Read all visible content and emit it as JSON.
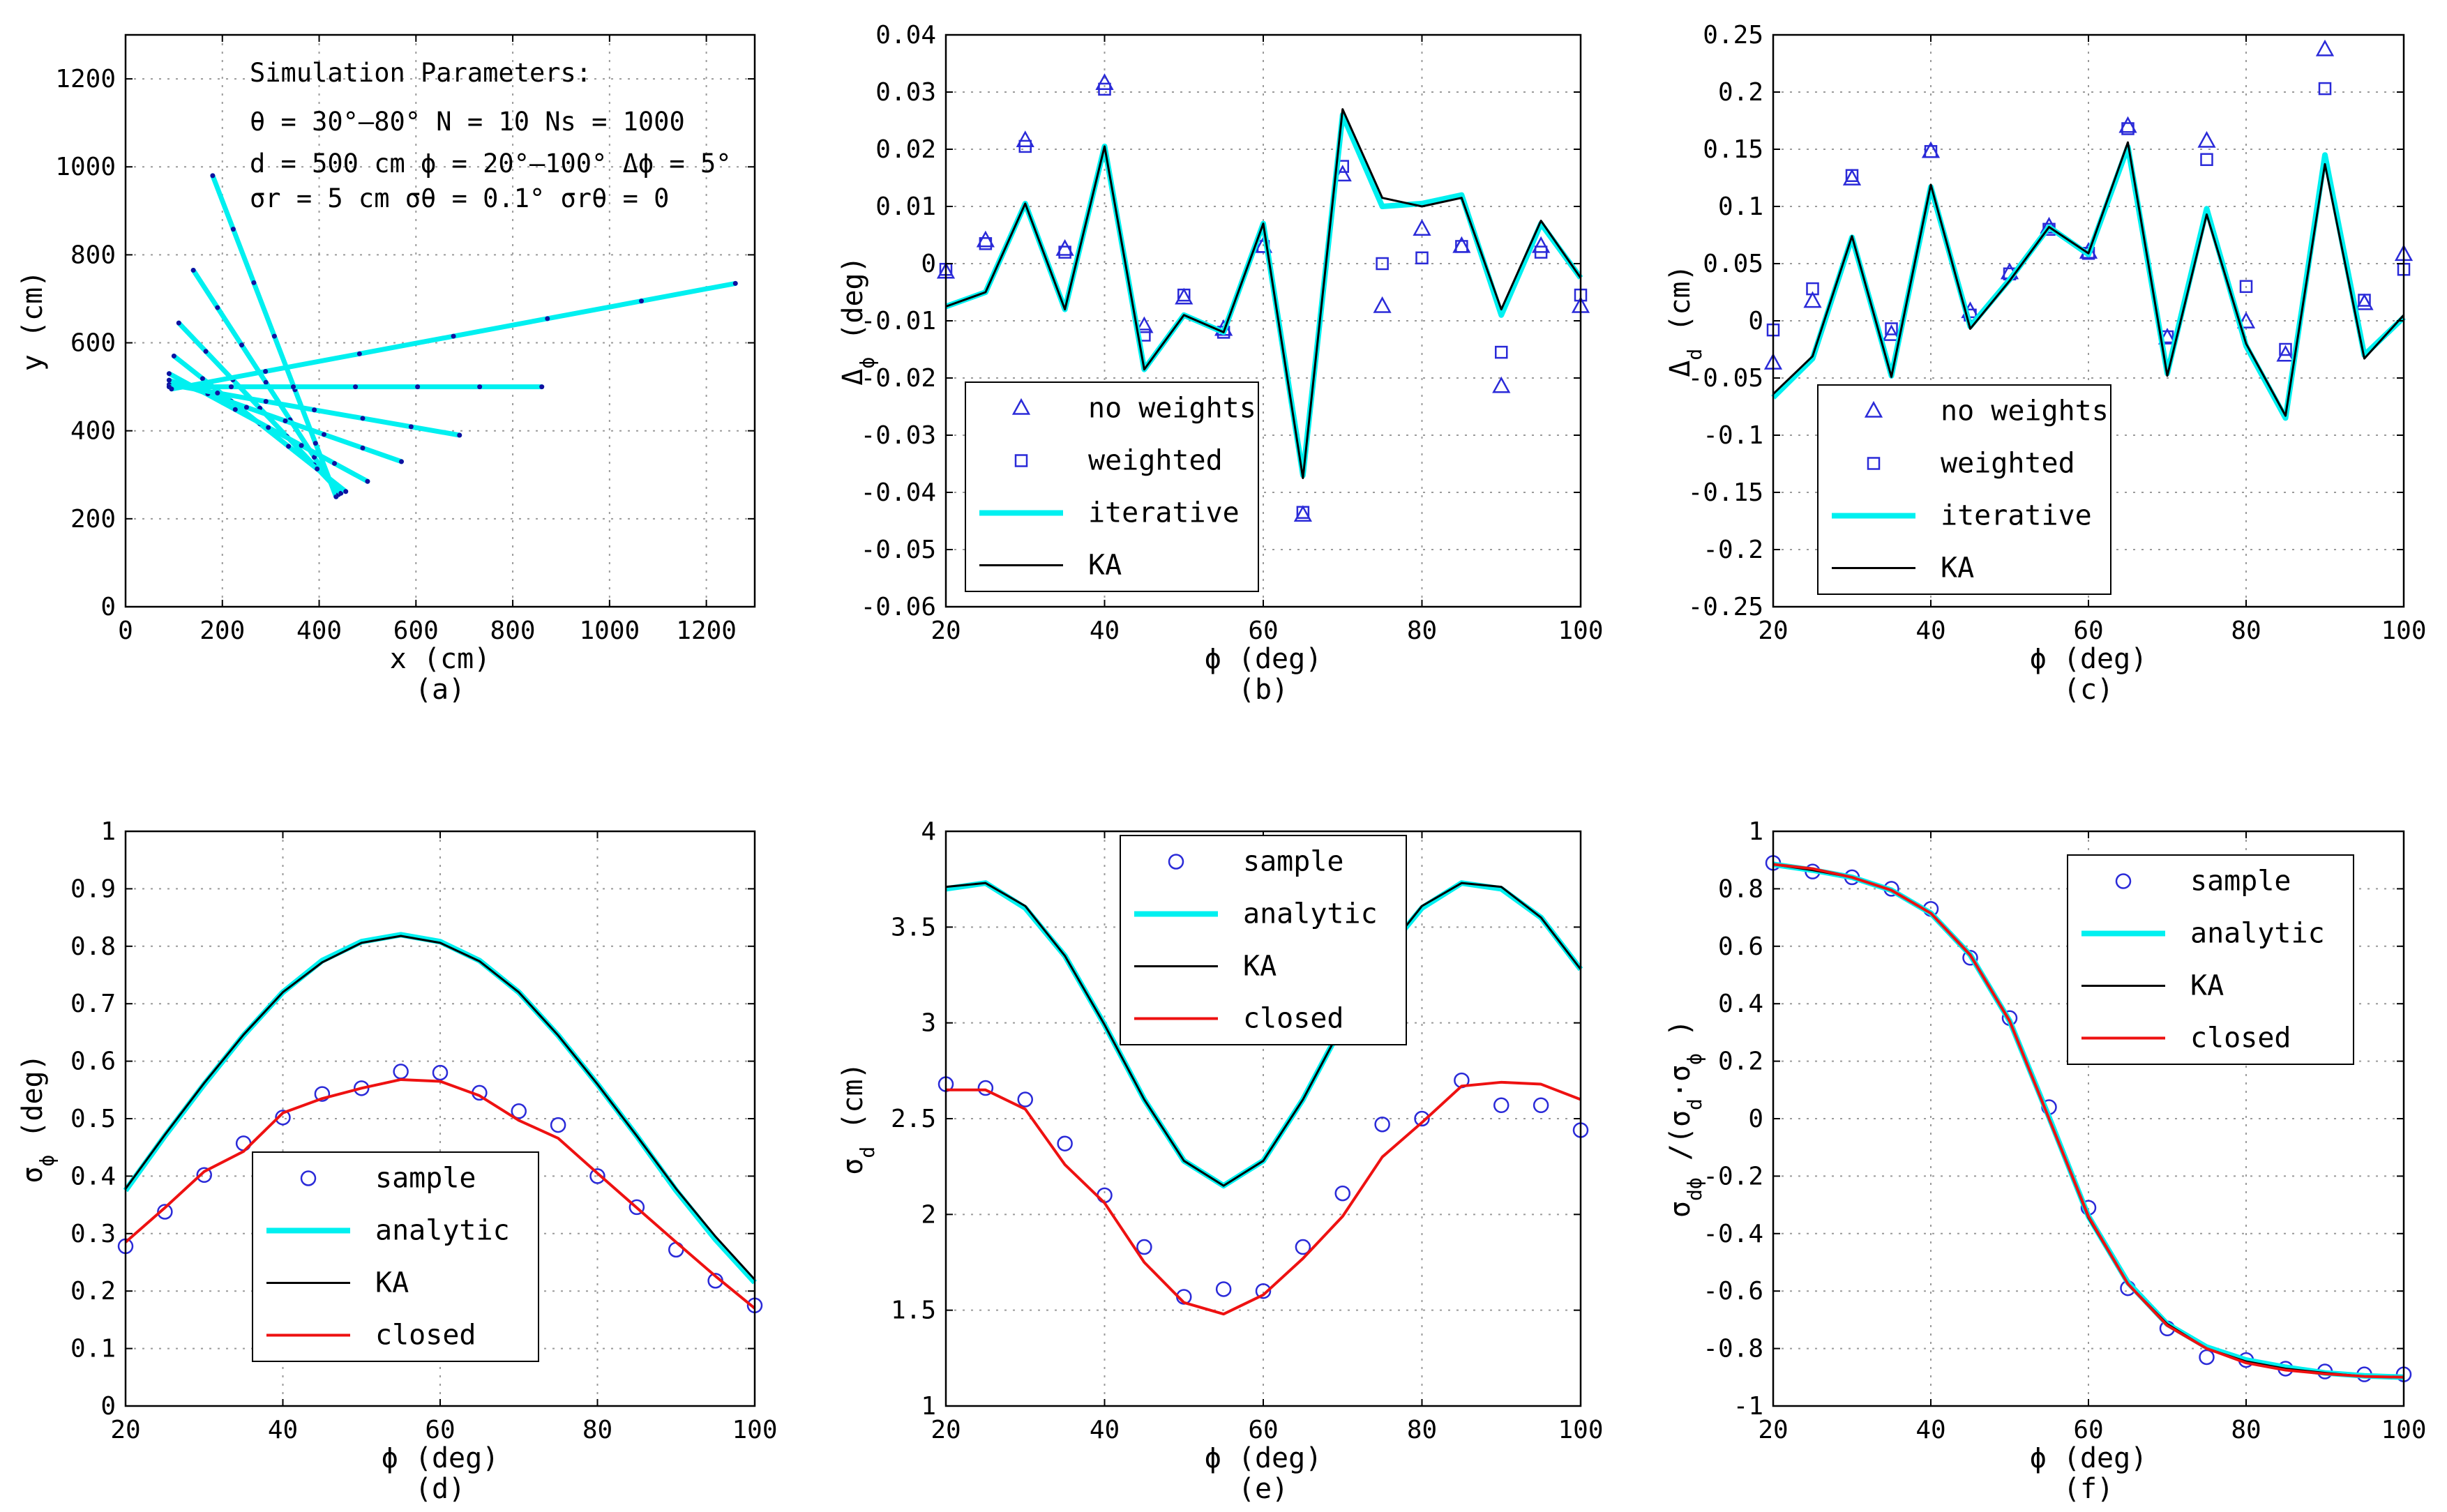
{
  "figure": {
    "params_title": "Simulation Parameters:",
    "params_lines": [
      "θ = 30°–80°   N = 10   Ns = 1000",
      "d = 500 cm  ϕ = 20°–100°  Δϕ = 5°",
      "σr = 5 cm   σθ = 0.1°   σrθ = 0"
    ]
  },
  "colors": {
    "cyan": "#00f0f0",
    "black": "#000000",
    "red": "#ee1111",
    "marker": "#2a2ad8",
    "dot": "#1010a0"
  },
  "chart_data": [
    {
      "id": "a",
      "type": "line",
      "caption": "(a)",
      "xlabel": "x (cm)",
      "ylabel": "y (cm)",
      "xlim": [
        0,
        1300
      ],
      "ylim": [
        0,
        1300
      ],
      "xticks": [
        0,
        200,
        400,
        600,
        800,
        1000,
        1200
      ],
      "yticks": [
        0,
        200,
        400,
        600,
        800,
        1000,
        1200
      ],
      "series": [
        {
          "name": "line-phi-100",
          "kind": "line",
          "color": "cyan",
          "points": [
            [
              180,
              980
            ],
            [
              435,
              250
            ]
          ]
        },
        {
          "name": "line-phi-80",
          "kind": "line",
          "color": "cyan",
          "points": [
            [
              140,
              765
            ],
            [
              440,
              255
            ]
          ]
        },
        {
          "name": "line-phi-70",
          "kind": "line",
          "color": "cyan",
          "points": [
            [
              110,
              645
            ],
            [
              445,
              258
            ]
          ]
        },
        {
          "name": "line-phi-60",
          "kind": "line",
          "color": "cyan",
          "points": [
            [
              100,
              570
            ],
            [
              455,
              262
            ]
          ]
        },
        {
          "name": "line-phi-40",
          "kind": "line",
          "color": "cyan",
          "points": [
            [
              90,
              530
            ],
            [
              500,
              285
            ]
          ]
        },
        {
          "name": "line-phi-30",
          "kind": "line",
          "color": "cyan",
          "points": [
            [
              90,
              515
            ],
            [
              570,
              330
            ]
          ]
        },
        {
          "name": "line-phi-20",
          "kind": "line",
          "color": "cyan",
          "points": [
            [
              90,
              505
            ],
            [
              690,
              390
            ]
          ]
        },
        {
          "name": "line-phi-0",
          "kind": "line",
          "color": "cyan",
          "points": [
            [
              90,
              500
            ],
            [
              860,
              500
            ]
          ]
        },
        {
          "name": "line-phi-neg10",
          "kind": "line",
          "color": "cyan",
          "points": [
            [
              95,
              495
            ],
            [
              1260,
              735
            ]
          ]
        }
      ],
      "param_box": true
    },
    {
      "id": "b",
      "type": "line",
      "caption": "(b)",
      "xlabel": "ϕ (deg)",
      "ylabel": "Δϕ (deg)",
      "ylabel_main": "Δ",
      "ylabel_sub": "ϕ",
      "ylabel_tail": "(deg)",
      "xlim": [
        20,
        100
      ],
      "ylim": [
        -0.06,
        0.04
      ],
      "xticks": [
        20,
        40,
        60,
        80,
        100
      ],
      "yticks": [
        -0.06,
        -0.05,
        -0.04,
        -0.03,
        -0.02,
        -0.01,
        0,
        0.01,
        0.02,
        0.03,
        0.04
      ],
      "x": [
        20,
        25,
        30,
        35,
        40,
        45,
        50,
        55,
        60,
        65,
        70,
        75,
        80,
        85,
        90,
        95,
        100
      ],
      "series": [
        {
          "name": "no weights",
          "kind": "triangle",
          "color": "marker",
          "values": [
            -0.0015,
            0.004,
            0.0215,
            0.0025,
            0.0315,
            -0.011,
            -0.006,
            -0.0115,
            0.003,
            -0.044,
            0.0155,
            -0.0075,
            0.006,
            0.003,
            -0.0215,
            0.003,
            -0.0075
          ]
        },
        {
          "name": "weighted",
          "kind": "square",
          "color": "marker",
          "values": [
            -0.001,
            0.0035,
            0.0205,
            0.002,
            0.0305,
            -0.0125,
            -0.0055,
            -0.012,
            0.003,
            -0.0435,
            0.017,
            0.0,
            0.001,
            0.003,
            -0.0155,
            0.002,
            -0.0055
          ]
        },
        {
          "name": "iterative",
          "kind": "line",
          "color": "cyan",
          "values": [
            -0.0075,
            -0.005,
            0.0105,
            -0.008,
            0.0205,
            -0.0185,
            -0.009,
            -0.012,
            0.007,
            -0.037,
            0.026,
            0.01,
            0.0105,
            0.012,
            -0.009,
            0.007,
            -0.0025
          ]
        },
        {
          "name": "KA",
          "kind": "line",
          "color": "black",
          "values": [
            -0.0075,
            -0.005,
            0.0105,
            -0.008,
            0.0205,
            -0.0185,
            -0.009,
            -0.012,
            0.007,
            -0.0375,
            0.027,
            0.0115,
            0.01,
            0.0115,
            -0.008,
            0.0075,
            -0.0025
          ]
        }
      ],
      "legend_pos": "lower-left"
    },
    {
      "id": "c",
      "type": "line",
      "caption": "(c)",
      "xlabel": "ϕ (deg)",
      "ylabel": "Δd (cm)",
      "ylabel_main": "Δ",
      "ylabel_sub": "d",
      "ylabel_tail": "(cm)",
      "xlim": [
        20,
        100
      ],
      "ylim": [
        -0.25,
        0.25
      ],
      "xticks": [
        20,
        40,
        60,
        80,
        100
      ],
      "yticks": [
        -0.25,
        -0.2,
        -0.15,
        -0.1,
        -0.05,
        0,
        0.05,
        0.1,
        0.15,
        0.2,
        0.25
      ],
      "x": [
        20,
        25,
        30,
        35,
        40,
        45,
        50,
        55,
        60,
        65,
        70,
        75,
        80,
        85,
        90,
        95,
        100
      ],
      "series": [
        {
          "name": "no weights",
          "kind": "triangle",
          "color": "marker",
          "values": [
            -0.037,
            0.017,
            0.124,
            -0.012,
            0.148,
            0.008,
            0.042,
            0.082,
            0.06,
            0.17,
            -0.015,
            0.157,
            -0.001,
            -0.03,
            0.237,
            0.015,
            0.058
          ]
        },
        {
          "name": "weighted",
          "kind": "square",
          "color": "marker",
          "values": [
            -0.008,
            0.028,
            0.127,
            -0.007,
            0.148,
            0.005,
            0.041,
            0.08,
            0.059,
            0.168,
            -0.014,
            0.141,
            0.03,
            -0.025,
            0.203,
            0.018,
            0.045
          ]
        },
        {
          "name": "iterative",
          "kind": "line",
          "color": "cyan",
          "values": [
            -0.067,
            -0.033,
            0.073,
            -0.048,
            0.117,
            -0.005,
            0.036,
            0.082,
            0.058,
            0.152,
            -0.046,
            0.098,
            -0.022,
            -0.085,
            0.145,
            -0.03,
            0.003
          ]
        },
        {
          "name": "KA",
          "kind": "line",
          "color": "black",
          "values": [
            -0.064,
            -0.031,
            0.074,
            -0.049,
            0.119,
            -0.007,
            0.035,
            0.082,
            0.059,
            0.156,
            -0.048,
            0.093,
            -0.02,
            -0.083,
            0.137,
            -0.033,
            0.005
          ]
        }
      ],
      "legend_pos": "lower-left"
    },
    {
      "id": "d",
      "type": "line",
      "caption": "(d)",
      "xlabel": "ϕ (deg)",
      "ylabel": "σϕ (deg)",
      "ylabel_main": "σ",
      "ylabel_sub": "ϕ",
      "ylabel_tail": "(deg)",
      "xlim": [
        20,
        100
      ],
      "ylim": [
        0,
        1
      ],
      "xticks": [
        20,
        40,
        60,
        80,
        100
      ],
      "yticks": [
        0,
        0.1,
        0.2,
        0.3,
        0.4,
        0.5,
        0.6,
        0.7,
        0.8,
        0.9,
        1
      ],
      "x": [
        20,
        25,
        30,
        35,
        40,
        45,
        50,
        55,
        60,
        65,
        70,
        75,
        80,
        85,
        90,
        95,
        100
      ],
      "series": [
        {
          "name": "sample",
          "kind": "circle",
          "color": "marker",
          "values": [
            0.278,
            0.338,
            0.402,
            0.457,
            0.502,
            0.543,
            0.553,
            0.582,
            0.58,
            0.545,
            0.513,
            0.489,
            0.4,
            0.346,
            0.272,
            0.218,
            0.175
          ]
        },
        {
          "name": "analytic",
          "kind": "line",
          "color": "cyan",
          "values": [
            0.375,
            0.47,
            0.56,
            0.645,
            0.72,
            0.775,
            0.808,
            0.82,
            0.808,
            0.775,
            0.72,
            0.645,
            0.56,
            0.47,
            0.375,
            0.29,
            0.215
          ]
        },
        {
          "name": "KA",
          "kind": "line",
          "color": "black",
          "values": [
            0.378,
            0.472,
            0.562,
            0.646,
            0.72,
            0.772,
            0.806,
            0.818,
            0.806,
            0.774,
            0.72,
            0.645,
            0.56,
            0.47,
            0.378,
            0.295,
            0.22
          ]
        },
        {
          "name": "closed",
          "kind": "line",
          "color": "red",
          "values": [
            0.285,
            0.345,
            0.408,
            0.443,
            0.51,
            0.535,
            0.553,
            0.568,
            0.565,
            0.54,
            0.497,
            0.466,
            0.405,
            0.345,
            0.285,
            0.226,
            0.17
          ]
        }
      ],
      "legend_pos": "lower-center"
    },
    {
      "id": "e",
      "type": "line",
      "caption": "(e)",
      "xlabel": "ϕ (deg)",
      "ylabel": "σd (cm)",
      "ylabel_main": "σ",
      "ylabel_sub": "d",
      "ylabel_tail": "(cm)",
      "xlim": [
        20,
        100
      ],
      "ylim": [
        1,
        4
      ],
      "xticks": [
        20,
        40,
        60,
        80,
        100
      ],
      "yticks": [
        1,
        1.5,
        2,
        2.5,
        3,
        3.5,
        4
      ],
      "x": [
        20,
        25,
        30,
        35,
        40,
        45,
        50,
        55,
        60,
        65,
        70,
        75,
        80,
        85,
        90,
        95,
        100
      ],
      "series": [
        {
          "name": "sample",
          "kind": "circle",
          "color": "marker",
          "values": [
            2.68,
            2.66,
            2.6,
            2.37,
            2.1,
            1.83,
            1.57,
            1.61,
            1.6,
            1.83,
            2.11,
            2.47,
            2.5,
            2.7,
            2.57,
            2.57,
            2.44
          ]
        },
        {
          "name": "analytic",
          "kind": "line",
          "color": "cyan",
          "values": [
            3.7,
            3.73,
            3.6,
            3.35,
            2.99,
            2.6,
            2.28,
            2.15,
            2.28,
            2.6,
            2.99,
            3.35,
            3.6,
            3.73,
            3.7,
            3.55,
            3.28
          ]
        },
        {
          "name": "KA",
          "kind": "line",
          "color": "black",
          "values": [
            3.71,
            3.73,
            3.61,
            3.35,
            2.99,
            2.6,
            2.28,
            2.15,
            2.28,
            2.6,
            2.99,
            3.35,
            3.61,
            3.73,
            3.71,
            3.55,
            3.28
          ]
        },
        {
          "name": "closed",
          "kind": "line",
          "color": "red",
          "values": [
            2.65,
            2.65,
            2.55,
            2.26,
            2.06,
            1.75,
            1.54,
            1.48,
            1.58,
            1.77,
            1.99,
            2.3,
            2.48,
            2.67,
            2.69,
            2.68,
            2.6
          ]
        }
      ],
      "legend_pos": "top-center"
    },
    {
      "id": "f",
      "type": "line",
      "caption": "(f)",
      "xlabel": "ϕ (deg)",
      "ylabel": "σdϕ /(σd·σϕ )",
      "ylabel_main": "σ",
      "ylabel_sub": "dϕ",
      "ylabel_tail": " /(σ",
      "ylabel_sub2": "d",
      "ylabel_tail2": "·σ",
      "ylabel_sub3": "ϕ",
      "ylabel_tail3": " )",
      "xlim": [
        20,
        100
      ],
      "ylim": [
        -1,
        1
      ],
      "xticks": [
        20,
        40,
        60,
        80,
        100
      ],
      "yticks": [
        -1,
        -0.8,
        -0.6,
        -0.4,
        -0.2,
        0,
        0.2,
        0.4,
        0.6,
        0.8,
        1
      ],
      "x": [
        20,
        25,
        30,
        35,
        40,
        45,
        50,
        55,
        60,
        65,
        70,
        75,
        80,
        85,
        90,
        95,
        100
      ],
      "series": [
        {
          "name": "sample",
          "kind": "circle",
          "color": "marker",
          "values": [
            0.89,
            0.86,
            0.84,
            0.8,
            0.73,
            0.56,
            0.35,
            0.04,
            -0.31,
            -0.59,
            -0.73,
            -0.83,
            -0.84,
            -0.87,
            -0.88,
            -0.89,
            -0.89
          ]
        },
        {
          "name": "analytic",
          "kind": "line",
          "color": "cyan",
          "values": [
            0.885,
            0.865,
            0.84,
            0.795,
            0.715,
            0.57,
            0.34,
            0.005,
            -0.34,
            -0.57,
            -0.715,
            -0.795,
            -0.84,
            -0.865,
            -0.885,
            -0.895,
            -0.9
          ]
        },
        {
          "name": "KA",
          "kind": "line",
          "color": "black",
          "values": [
            0.885,
            0.865,
            0.84,
            0.795,
            0.715,
            0.568,
            0.338,
            0.0,
            -0.345,
            -0.575,
            -0.715,
            -0.8,
            -0.845,
            -0.87,
            -0.885,
            -0.897,
            -0.9
          ]
        },
        {
          "name": "closed",
          "kind": "line",
          "color": "red",
          "values": [
            0.885,
            0.87,
            0.84,
            0.795,
            0.715,
            0.57,
            0.34,
            0.0,
            -0.34,
            -0.575,
            -0.72,
            -0.8,
            -0.85,
            -0.875,
            -0.888,
            -0.897,
            -0.9
          ]
        }
      ],
      "legend_pos": "upper-right"
    }
  ]
}
